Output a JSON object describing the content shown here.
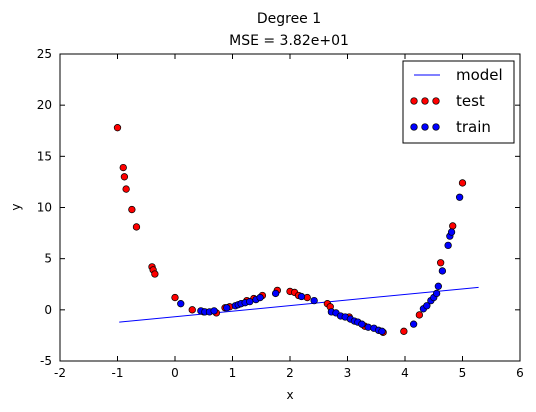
{
  "chart_data": {
    "type": "scatter",
    "title": "Degree 1",
    "subtitle": "MSE = 3.82e+01",
    "xlabel": "x",
    "ylabel": "y",
    "xlim": [
      -2,
      6
    ],
    "ylim": [
      -5,
      25
    ],
    "xticks": [
      "-2",
      "-1",
      "0",
      "1",
      "2",
      "3",
      "4",
      "5",
      "6"
    ],
    "yticks": [
      "-5",
      "0",
      "5",
      "10",
      "15",
      "20",
      "25"
    ],
    "grid": false,
    "legend_position": "top-right",
    "colors": {
      "model": "#0000ff",
      "test": "#ff0000",
      "train": "#0000ff",
      "marker_edge": "#000000"
    },
    "series": [
      {
        "name": "model",
        "kind": "line",
        "x": [
          -0.97,
          5.28
        ],
        "y": [
          -1.2,
          2.2
        ]
      },
      {
        "name": "test",
        "kind": "scatter",
        "x": [
          -1.0,
          -0.9,
          -0.88,
          -0.85,
          -0.75,
          -0.67,
          -0.4,
          -0.38,
          -0.35,
          0.0,
          0.3,
          0.5,
          0.72,
          0.87,
          0.95,
          1.25,
          1.37,
          1.52,
          1.78,
          2.0,
          2.08,
          2.15,
          2.3,
          2.65,
          2.7,
          3.03,
          3.3,
          3.62,
          3.98,
          4.25,
          4.62,
          4.83,
          5.0
        ],
        "y": [
          17.8,
          13.9,
          13.0,
          11.8,
          9.8,
          8.1,
          4.2,
          3.9,
          3.5,
          1.2,
          0.0,
          -0.2,
          -0.3,
          0.2,
          0.3,
          0.9,
          1.1,
          1.4,
          1.9,
          1.8,
          1.7,
          1.4,
          1.2,
          0.6,
          0.3,
          -0.7,
          -1.6,
          -2.2,
          -2.1,
          -0.5,
          4.6,
          8.2,
          12.4
        ]
      },
      {
        "name": "train",
        "kind": "scatter",
        "x": [
          0.1,
          0.45,
          0.52,
          0.6,
          0.68,
          0.9,
          1.05,
          1.1,
          1.15,
          1.22,
          1.3,
          1.41,
          1.48,
          1.75,
          2.2,
          2.42,
          2.72,
          2.8,
          2.88,
          2.96,
          3.05,
          3.12,
          3.18,
          3.25,
          3.36,
          3.46,
          3.54,
          3.6,
          4.15,
          4.32,
          4.38,
          4.45,
          4.5,
          4.55,
          4.58,
          4.65,
          4.75,
          4.78,
          4.81,
          4.95
        ],
        "y": [
          0.6,
          -0.1,
          -0.2,
          -0.2,
          -0.1,
          0.2,
          0.4,
          0.5,
          0.6,
          0.7,
          0.8,
          1.0,
          1.2,
          1.6,
          1.3,
          0.9,
          -0.2,
          -0.3,
          -0.6,
          -0.7,
          -0.9,
          -1.1,
          -1.2,
          -1.4,
          -1.7,
          -1.8,
          -2.0,
          -2.1,
          -1.4,
          0.1,
          0.4,
          0.9,
          1.2,
          1.6,
          2.3,
          3.8,
          6.3,
          7.2,
          7.6,
          11.0
        ]
      }
    ]
  }
}
